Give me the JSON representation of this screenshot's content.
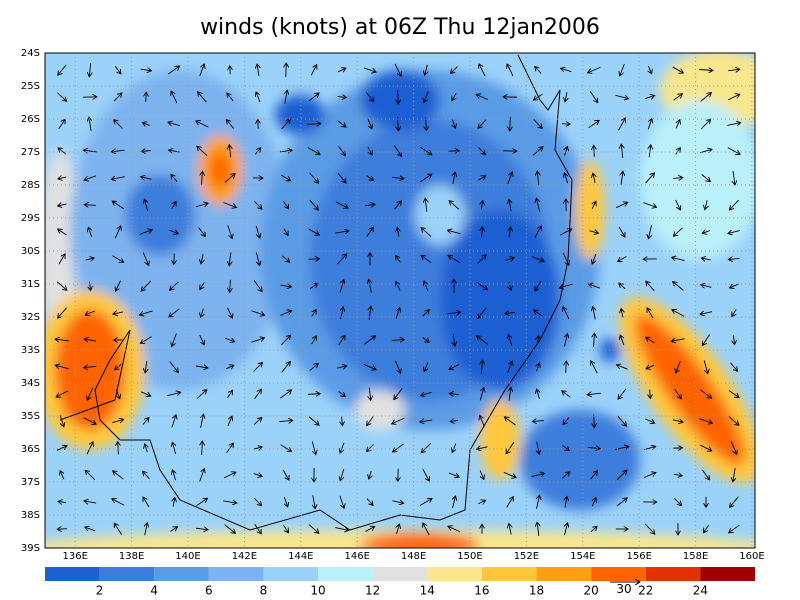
{
  "title": "winds (knots) at 06Z Thu 12jan2006",
  "lat_labels": [
    "24S",
    "25S",
    "26S",
    "27S",
    "28S",
    "29S",
    "30S",
    "31S",
    "32S",
    "33S",
    "34S",
    "35S",
    "36S",
    "37S",
    "38S",
    "39S"
  ],
  "lon_labels": [
    "136E",
    "138E",
    "140E",
    "142E",
    "144E",
    "146E",
    "148E",
    "150E",
    "152E",
    "154E",
    "156E",
    "158E",
    "160E"
  ],
  "colorbar": {
    "colors": [
      "#1e5fd2",
      "#3c7ddc",
      "#5a9be6",
      "#7db4f0",
      "#9bd2fa",
      "#b9f0fa",
      "#e1e1e1",
      "#fae68c",
      "#ffc83c",
      "#ffa014",
      "#ff6400",
      "#e13200",
      "#a00000"
    ],
    "labels": [
      2,
      4,
      6,
      8,
      10,
      12,
      14,
      16,
      18,
      20,
      22,
      24
    ]
  },
  "reference_vector": "30"
}
